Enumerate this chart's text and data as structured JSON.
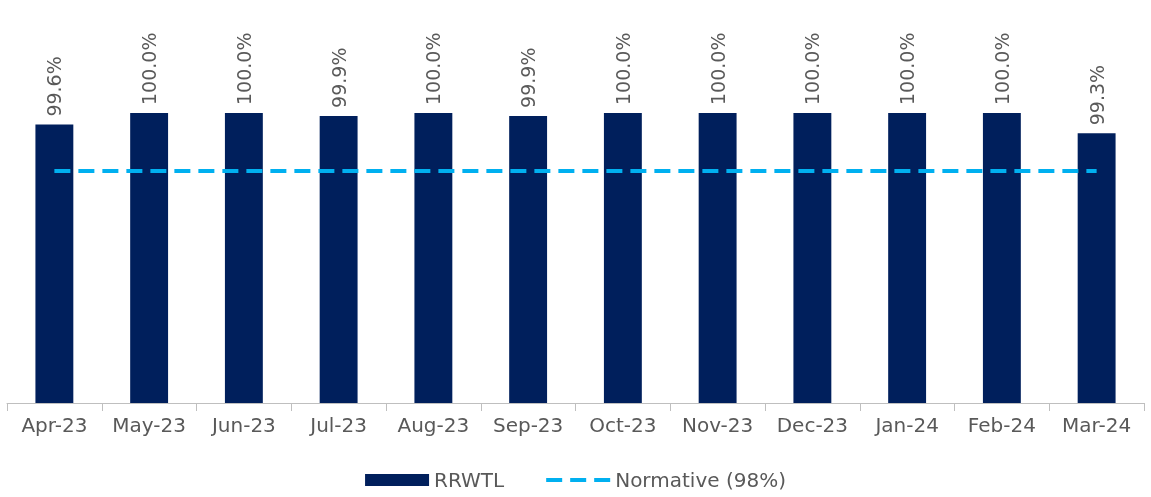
{
  "chart_data": {
    "type": "bar",
    "categories": [
      "Apr-23",
      "May-23",
      "Jun-23",
      "Jul-23",
      "Aug-23",
      "Sep-23",
      "Oct-23",
      "Nov-23",
      "Dec-23",
      "Jan-24",
      "Feb-24",
      "Mar-24"
    ],
    "series": [
      {
        "name": "RRWTL",
        "color": "#001f5c",
        "values": [
          99.6,
          100.0,
          100.0,
          99.9,
          100.0,
          99.9,
          100.0,
          100.0,
          100.0,
          100.0,
          100.0,
          99.3
        ],
        "value_labels": [
          "99.6%",
          "100.0%",
          "100.0%",
          "99.9%",
          "100.0%",
          "99.9%",
          "100.0%",
          "100.0%",
          "100.0%",
          "100.0%",
          "100.0%",
          "99.3%"
        ]
      }
    ],
    "ylim": [
      90,
      100
    ],
    "tick_labels": "x",
    "legend": "bottom",
    "ref_lines": [
      {
        "axis": "y",
        "value": 98,
        "label": "Normative (98%)",
        "color": "#00b0f0",
        "line_style": "dashed"
      }
    ]
  }
}
